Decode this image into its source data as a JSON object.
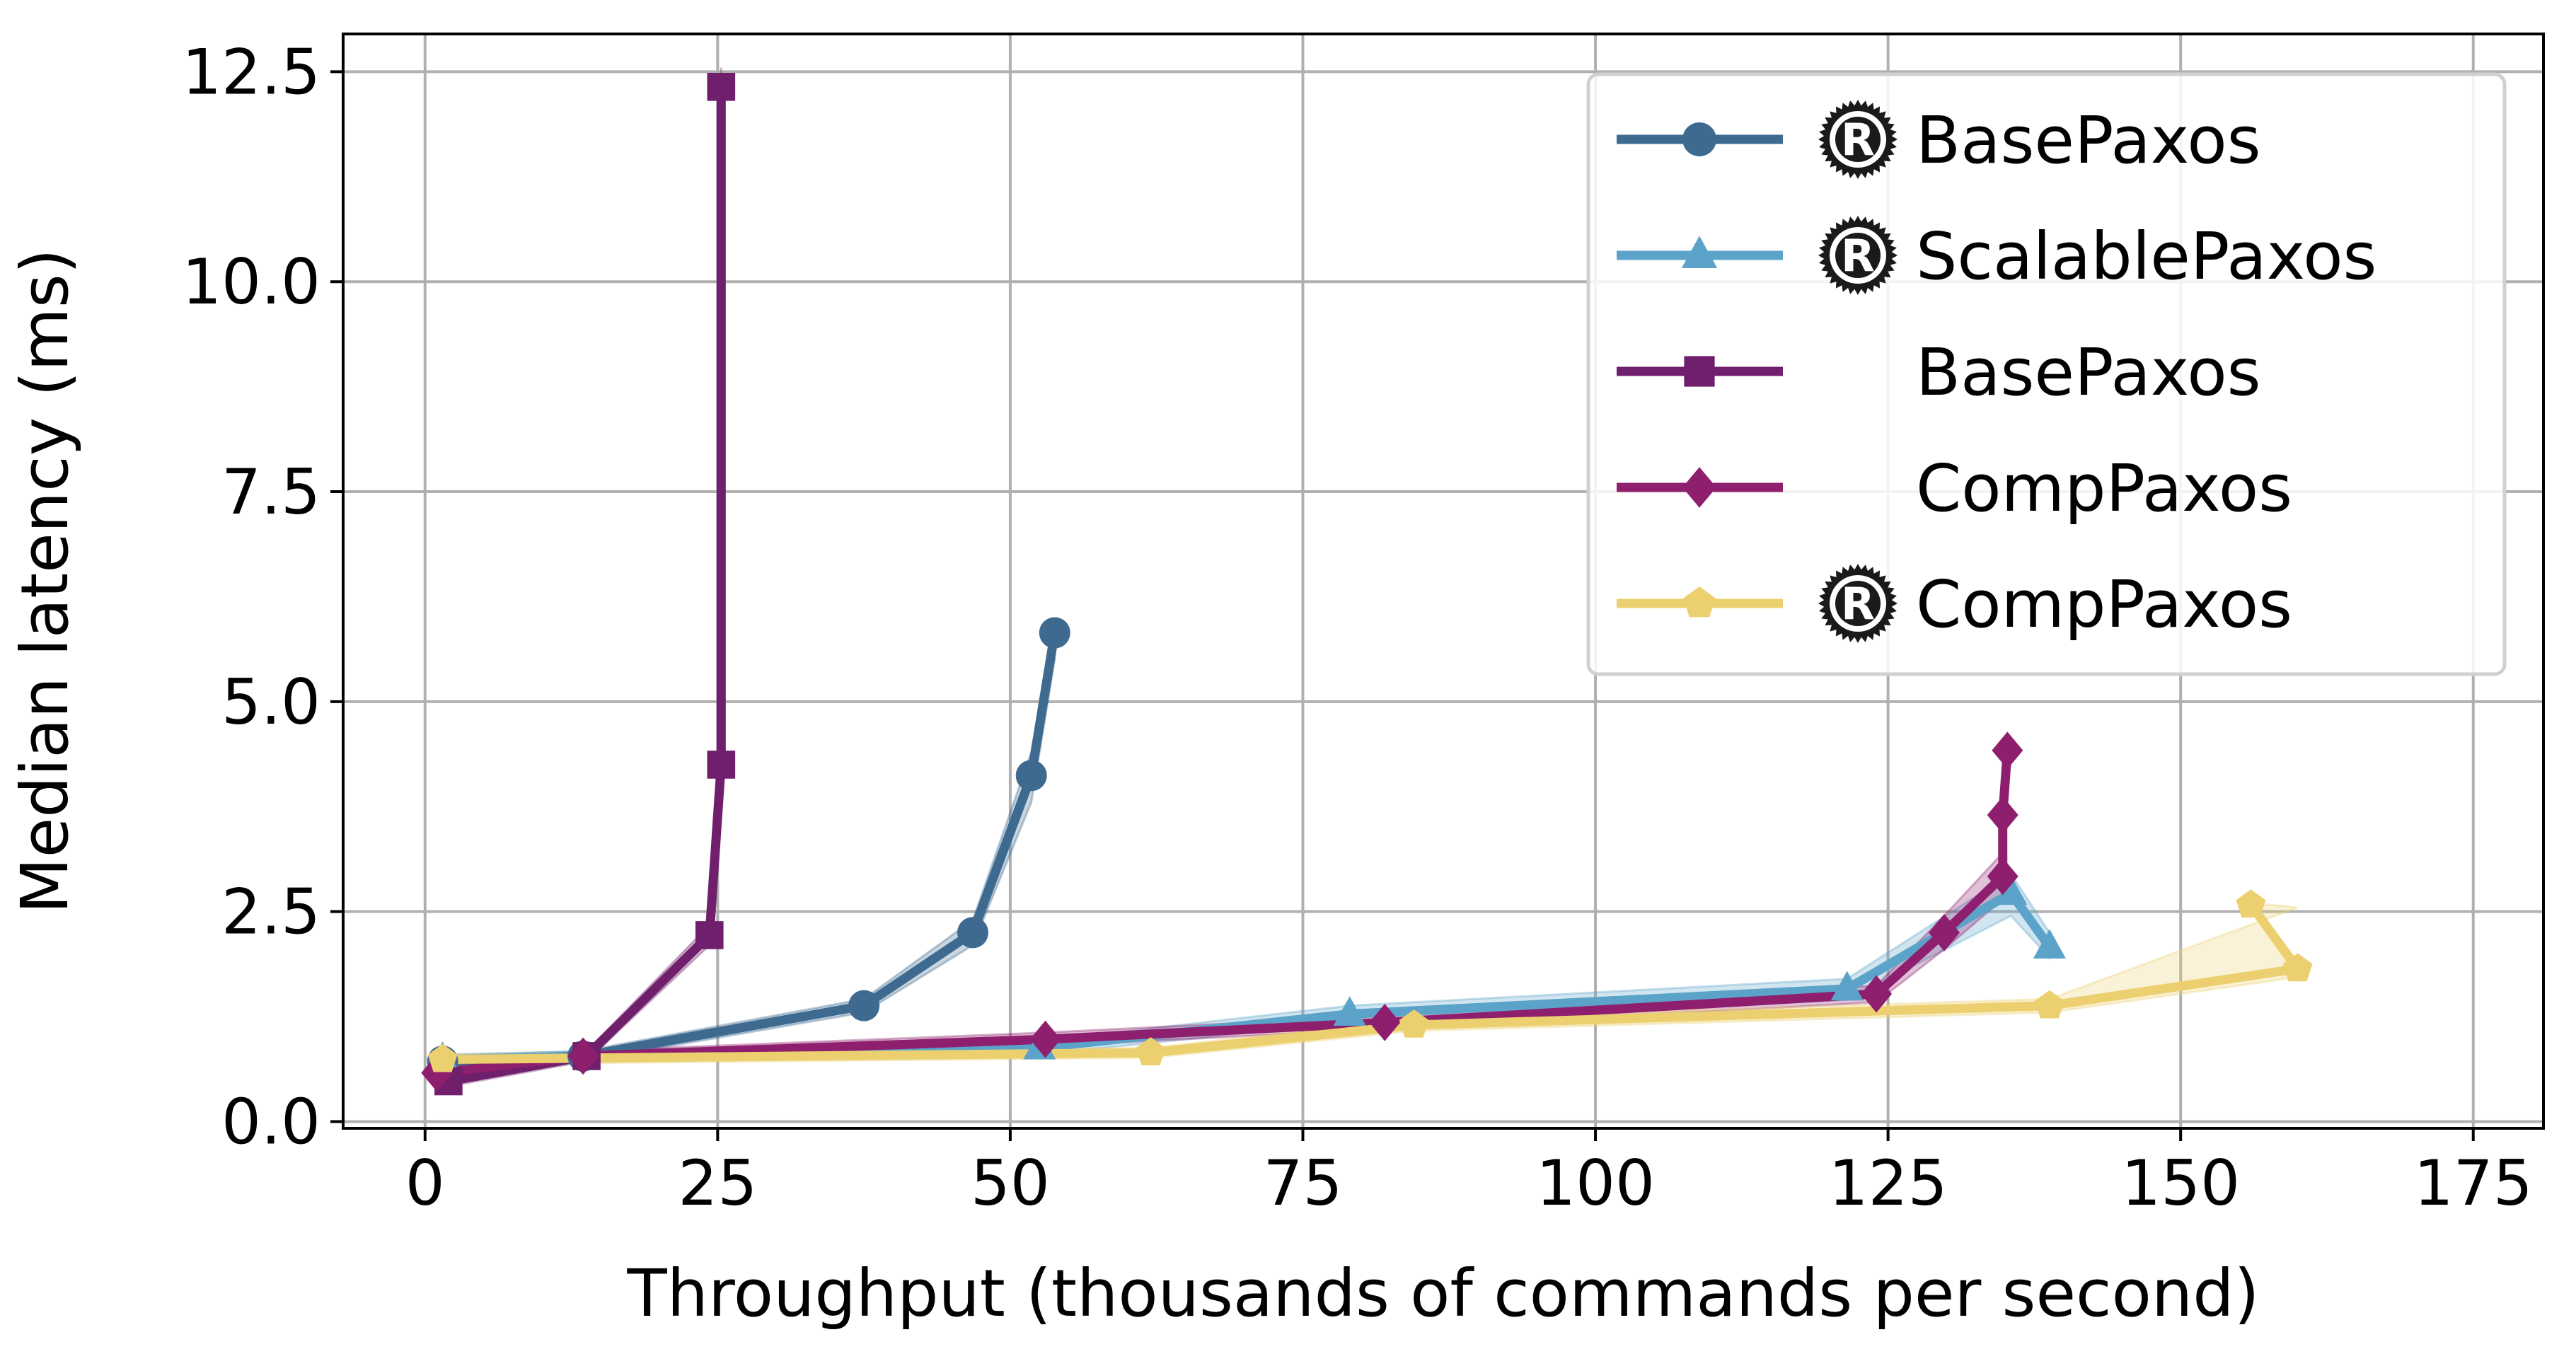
{
  "chart_data": {
    "type": "line",
    "xlabel": "Throughput (thousands of commands per second)",
    "ylabel": "Median latency (ms)",
    "xlim": [
      -7,
      181
    ],
    "ylim": [
      -0.08,
      12.95
    ],
    "xticks": [
      0,
      25,
      50,
      75,
      100,
      125,
      150,
      175
    ],
    "xtick_labels": [
      "0",
      "25",
      "50",
      "75",
      "100",
      "125",
      "150",
      "175"
    ],
    "yticks": [
      0.0,
      2.5,
      5.0,
      7.5,
      10.0,
      12.5
    ],
    "ytick_labels": [
      "0.0",
      "2.5",
      "5.0",
      "7.5",
      "10.0",
      "12.5"
    ],
    "grid": true,
    "legend_position": "top-right",
    "series": [
      {
        "name": "BasePaxos",
        "rust_logo": true,
        "color": "#3e6a90",
        "marker": "circle",
        "x": [
          1.5,
          13.5,
          37.5,
          46.8,
          51.8,
          53.8
        ],
        "y": [
          0.72,
          0.78,
          1.38,
          2.25,
          4.12,
          5.82
        ],
        "band_lower": [
          0.66,
          0.72,
          1.3,
          2.1,
          3.8,
          5.5
        ],
        "band_upper": [
          0.78,
          0.84,
          1.46,
          2.4,
          4.4,
          5.85
        ]
      },
      {
        "name": "ScalablePaxos",
        "rust_logo": true,
        "color": "#5ba3c9",
        "marker": "triangle",
        "x": [
          1.5,
          52.5,
          79.0,
          121.5,
          135.5,
          138.8
        ],
        "y": [
          0.74,
          0.88,
          1.28,
          1.58,
          2.72,
          2.08
        ],
        "band_lower": [
          0.68,
          0.8,
          1.18,
          1.45,
          2.45,
          1.95
        ],
        "band_upper": [
          0.8,
          0.96,
          1.38,
          1.7,
          2.95,
          2.25
        ]
      },
      {
        "name": "BasePaxos",
        "rust_logo": false,
        "color": "#6f1f6c",
        "marker": "square",
        "x": [
          2.0,
          13.8,
          24.3,
          25.3,
          25.3
        ],
        "y": [
          0.48,
          0.78,
          2.22,
          4.25,
          12.32
        ],
        "band_lower": [
          0.42,
          0.72,
          2.1,
          4.1,
          12.15
        ],
        "band_upper": [
          0.54,
          0.84,
          2.34,
          4.4,
          12.55
        ]
      },
      {
        "name": "CompPaxos",
        "rust_logo": false,
        "color": "#8e1f6e",
        "marker": "diamond",
        "x": [
          1.0,
          13.5,
          53.0,
          82.0,
          124.0,
          129.8,
          134.8,
          134.8,
          135.2
        ],
        "y": [
          0.58,
          0.78,
          0.98,
          1.18,
          1.52,
          2.25,
          2.92,
          3.65,
          4.42
        ],
        "band_lower": [
          0.52,
          0.72,
          0.9,
          1.1,
          1.42,
          2.05,
          2.65,
          3.3,
          4.25
        ],
        "band_upper": [
          0.64,
          0.84,
          1.06,
          1.26,
          1.62,
          2.45,
          3.2,
          4.0,
          4.45
        ]
      },
      {
        "name": "CompPaxos",
        "rust_logo": true,
        "color": "#ecd06f",
        "marker": "pentagon",
        "x": [
          1.5,
          62.0,
          84.5,
          138.8,
          160.0,
          156.0
        ],
        "y": [
          0.74,
          0.82,
          1.15,
          1.38,
          1.82,
          2.58
        ],
        "band_lower": [
          0.68,
          0.76,
          1.08,
          1.3,
          1.72,
          2.52
        ],
        "band_upper": [
          0.8,
          0.88,
          1.22,
          1.46,
          2.55,
          2.6
        ]
      }
    ]
  }
}
